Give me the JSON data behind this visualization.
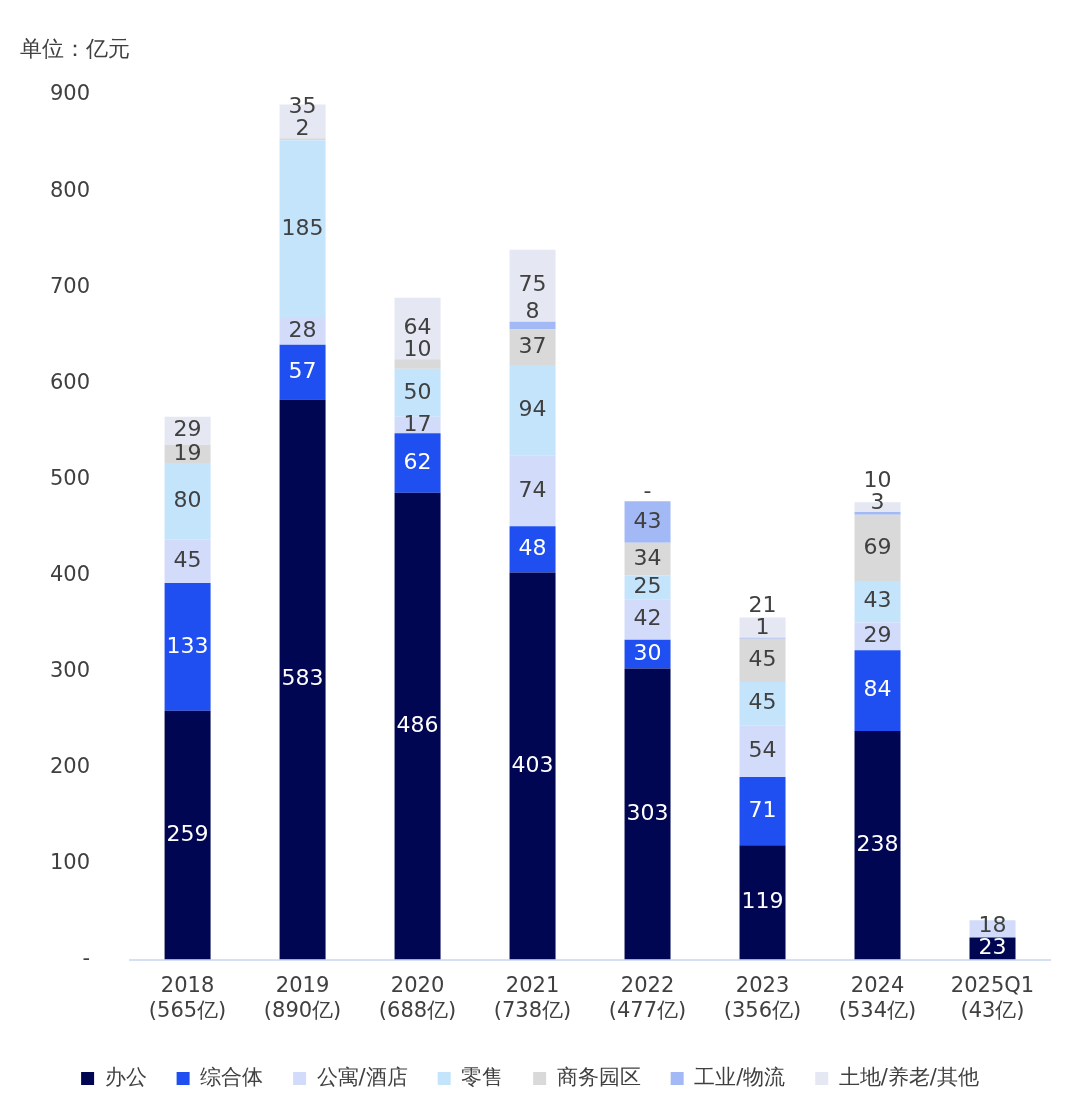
{
  "chart_data": {
    "type": "bar",
    "ylabel": "单位：亿元",
    "stacked": true,
    "grid": false,
    "legend": "bottom",
    "categories": [
      "2018\n(565亿)",
      "2019\n(890亿)",
      "2020\n(688亿)",
      "2021\n(738亿)",
      "2022\n(477亿)",
      "2023\n(356亿)",
      "2024\n(534亿)",
      "2025Q1\n(43亿)"
    ],
    "ylim": [
      0,
      900
    ],
    "yticks": [
      {
        "value": 0,
        "label": "-"
      },
      100,
      200,
      300,
      400,
      500,
      600,
      700,
      800,
      900
    ],
    "series": [
      {
        "name": "办公",
        "color": "#000652",
        "values": [
          259,
          583,
          486,
          403,
          303,
          119,
          238,
          23
        ],
        "value_labels": [
          "259",
          "583",
          "486",
          "403",
          "303",
          "119",
          "238",
          "23"
        ]
      },
      {
        "name": "综合体",
        "color": "#1f4ff0",
        "values": [
          133,
          57,
          62,
          48,
          30,
          71,
          84,
          null
        ],
        "value_labels": [
          "133",
          "57",
          "62",
          "48",
          "30",
          "71",
          "84",
          null
        ]
      },
      {
        "name": "公寓/酒店",
        "color": "#d2dcfa",
        "values": [
          45,
          28,
          17,
          74,
          42,
          54,
          29,
          18
        ],
        "value_labels": [
          "45",
          "28",
          "17",
          "74",
          "42",
          "54",
          "29",
          "18"
        ]
      },
      {
        "name": "零售",
        "color": "#c4e4fc",
        "values": [
          80,
          185,
          50,
          94,
          25,
          45,
          43,
          null
        ],
        "value_labels": [
          "80",
          "185",
          "50",
          "94",
          "25",
          "45",
          "43",
          null
        ]
      },
      {
        "name": "商务园区",
        "color": "#d9d9d9",
        "values": [
          19,
          2,
          10,
          37,
          34,
          45,
          69,
          null
        ],
        "value_labels": [
          "19",
          "2",
          "10",
          "37",
          "34",
          "45",
          "69",
          null
        ]
      },
      {
        "name": "工业/物流",
        "color": "#a3b9f5",
        "values": [
          null,
          null,
          null,
          8,
          43,
          1,
          3,
          null
        ],
        "value_labels": [
          null,
          null,
          null,
          "8",
          "43",
          "1",
          "3",
          null
        ]
      },
      {
        "name": "土地/养老/其他",
        "color": "#e5e7f2",
        "values": [
          29,
          35,
          64,
          75,
          0,
          21,
          10,
          null
        ],
        "value_labels": [
          "29",
          "35",
          "64",
          "75",
          "-",
          "21",
          "10",
          null
        ]
      }
    ]
  }
}
